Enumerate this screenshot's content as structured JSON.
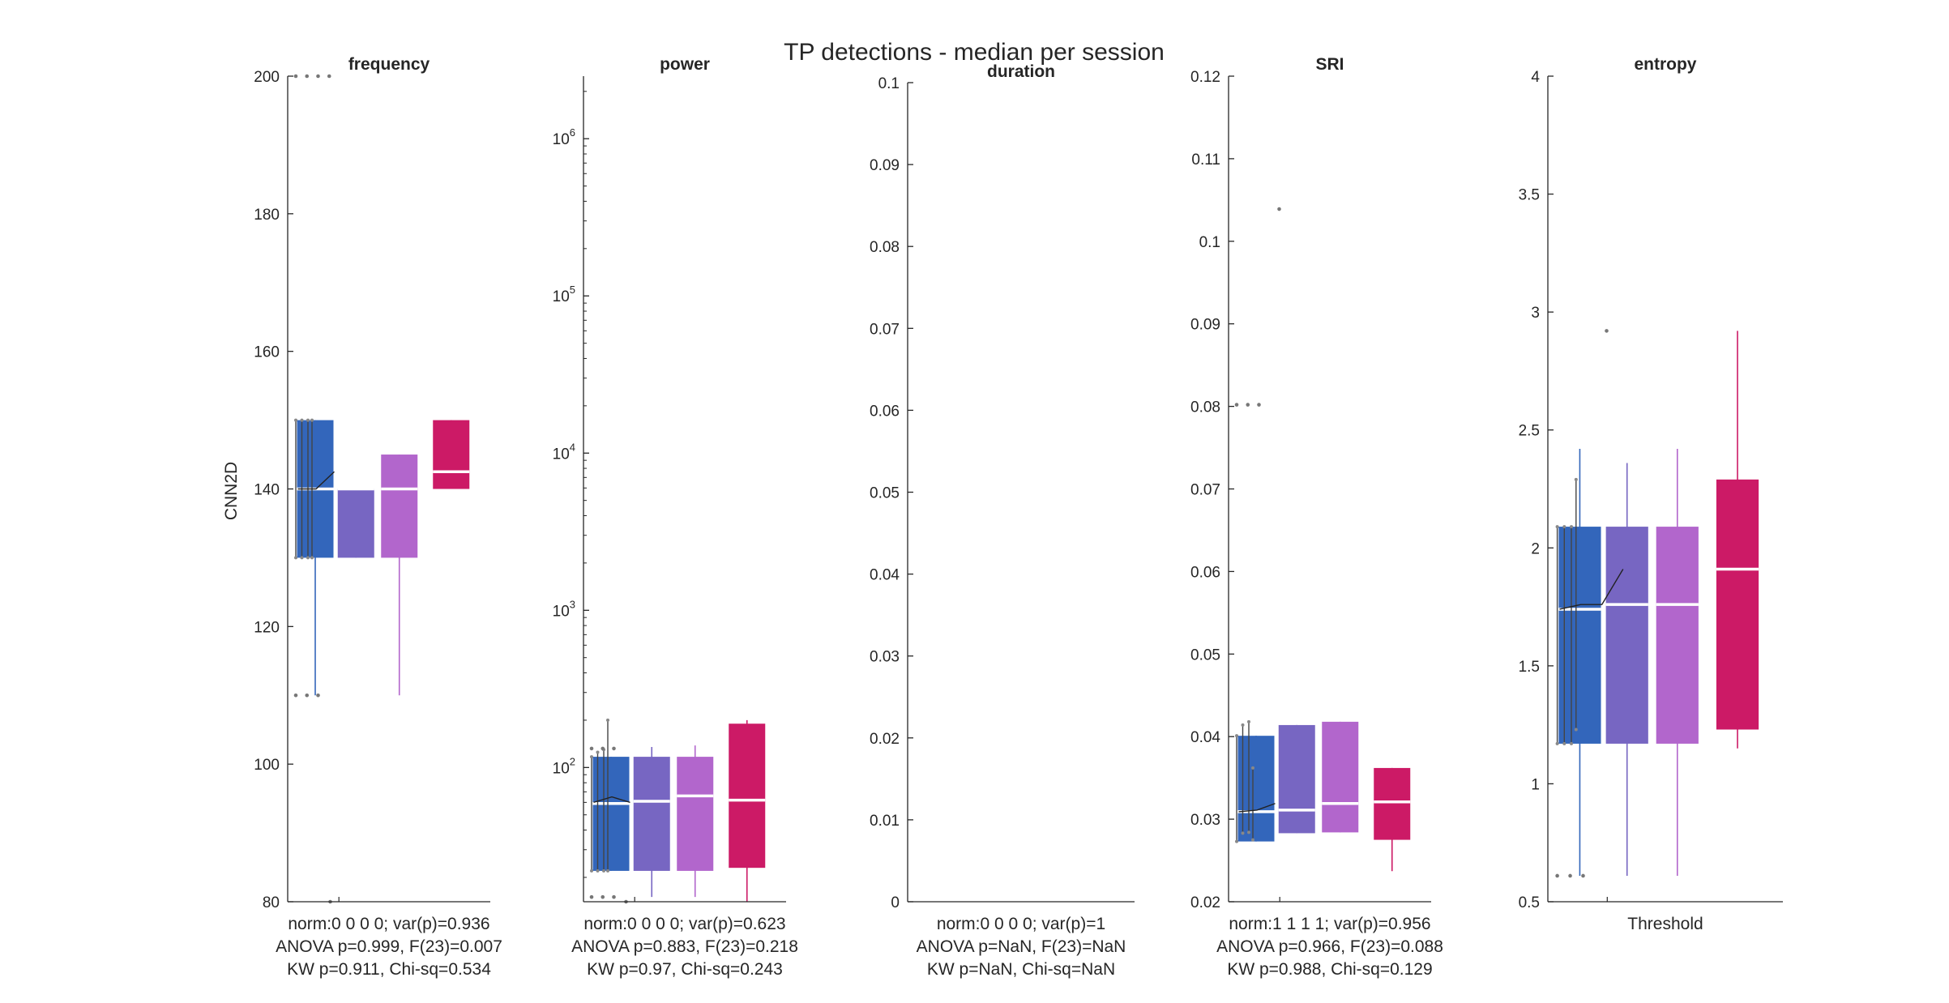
{
  "figure": {
    "title": "TP detections - median per session",
    "ylabel": "CNN2D",
    "xlabel": "Threshold"
  },
  "chart_data": [
    {
      "type": "box",
      "title": "frequency",
      "ylim": [
        80,
        200
      ],
      "yscale": "linear",
      "yticks": [
        80,
        100,
        120,
        140,
        160,
        180,
        200
      ],
      "ytick_labels": [
        "80",
        "100",
        "120",
        "140",
        "160",
        "180",
        "200"
      ],
      "groups": [
        {
          "color": "#3366bb",
          "median": 140,
          "q1": 130,
          "q3": 150,
          "whisker_low": 110,
          "whisker_high": 150
        },
        {
          "color": "#7766c2",
          "median": 140,
          "q1": 130,
          "q3": 140,
          "whisker_low": 130,
          "whisker_high": 140
        },
        {
          "color": "#b266cc",
          "median": 140,
          "q1": 130,
          "q3": 145,
          "whisker_low": 110,
          "whisker_high": 145
        },
        {
          "color": "#cc1a66",
          "median": 142.5,
          "q1": 140,
          "q3": 150,
          "whisker_low": 140,
          "whisker_high": 150
        }
      ],
      "outliers": [
        {
          "y": 200,
          "n": 4
        },
        {
          "y": 110,
          "n": 3
        }
      ],
      "low_marker": 80,
      "session_values": [
        140,
        140,
        142.5
      ],
      "session_spans": [
        [
          130,
          150
        ],
        [
          130,
          150
        ],
        [
          130,
          150
        ],
        [
          130,
          150
        ]
      ],
      "stats": [
        "norm:0  0  0  0; var(p)=0.936",
        "ANOVA p=0.999, F(23)=0.007",
        "KW p=0.911, Chi-sq=0.534"
      ]
    },
    {
      "type": "box",
      "title": "power",
      "ylim": [
        14,
        2500000
      ],
      "yscale": "log",
      "yticks": [
        100,
        1000,
        10000,
        100000,
        1000000
      ],
      "ytick_labels": [
        "10",
        "10",
        "10",
        "10",
        "10"
      ],
      "ytick_exponents": [
        "2",
        "3",
        "4",
        "5",
        "6"
      ],
      "groups": [
        {
          "color": "#3366bb",
          "median": 59,
          "q1": 22,
          "q3": 117,
          "whisker_low": 22,
          "whisker_high": 117
        },
        {
          "color": "#7766c2",
          "median": 61,
          "q1": 22,
          "q3": 117,
          "whisker_low": 15,
          "whisker_high": 135
        },
        {
          "color": "#b266cc",
          "median": 66,
          "q1": 22,
          "q3": 117,
          "whisker_low": 15,
          "whisker_high": 138
        },
        {
          "color": "#cc1a66",
          "median": 62,
          "q1": 23,
          "q3": 190,
          "whisker_low": 14,
          "whisker_high": 200
        }
      ],
      "outliers": [
        {
          "y": 15,
          "n": 3
        },
        {
          "y": 132,
          "n": 3
        }
      ],
      "low_marker": 14,
      "session_values": [
        60,
        65,
        60
      ],
      "session_spans": [
        [
          22,
          117
        ],
        [
          22,
          125
        ],
        [
          22,
          130
        ],
        [
          22,
          200
        ]
      ],
      "stats": [
        "norm:0  0  0  0; var(p)=0.623",
        "ANOVA p=0.883, F(23)=0.218",
        "KW p=0.97, Chi-sq=0.243"
      ]
    },
    {
      "type": "box",
      "title": "duration",
      "ylim": [
        0,
        0.1
      ],
      "yscale": "linear",
      "yticks": [
        0,
        0.01,
        0.02,
        0.03,
        0.04,
        0.05,
        0.06,
        0.07,
        0.08,
        0.09,
        0.1
      ],
      "ytick_labels": [
        "0",
        "0.01",
        "0.02",
        "0.03",
        "0.04",
        "0.05",
        "0.06",
        "0.07",
        "0.08",
        "0.09",
        "0.1"
      ],
      "groups": [],
      "outliers": [],
      "session_values": [],
      "session_spans": [],
      "stats": [
        "norm:0  0  0  0; var(p)=1",
        "ANOVA p=NaN, F(23)=NaN",
        "KW p=NaN, Chi-sq=NaN"
      ]
    },
    {
      "type": "box",
      "title": "SRI",
      "ylim": [
        0.02,
        0.12
      ],
      "yscale": "linear",
      "yticks": [
        0.02,
        0.03,
        0.04,
        0.05,
        0.06,
        0.07,
        0.08,
        0.09,
        0.1,
        0.11,
        0.12
      ],
      "ytick_labels": [
        "0.02",
        "0.03",
        "0.04",
        "0.05",
        "0.06",
        "0.07",
        "0.08",
        "0.09",
        "0.1",
        "0.11",
        "0.12"
      ],
      "groups": [
        {
          "color": "#3366bb",
          "median": 0.0309,
          "q1": 0.0273,
          "q3": 0.0401,
          "whisker_low": 0.0273,
          "whisker_high": 0.0401
        },
        {
          "color": "#7766c2",
          "median": 0.0311,
          "q1": 0.0283,
          "q3": 0.0414,
          "whisker_low": 0.0283,
          "whisker_high": 0.0414
        },
        {
          "color": "#b266cc",
          "median": 0.0319,
          "q1": 0.0284,
          "q3": 0.0418,
          "whisker_low": 0.0284,
          "whisker_high": 0.0418
        },
        {
          "color": "#cc1a66",
          "median": 0.0321,
          "q1": 0.0275,
          "q3": 0.0362,
          "whisker_low": 0.0237,
          "whisker_high": 0.0362
        }
      ],
      "outliers": [
        {
          "y": 0.0802,
          "n": 3
        },
        {
          "y": 0.1039,
          "n": 1
        }
      ],
      "session_values": [
        0.0309,
        0.0311,
        0.0319
      ],
      "session_spans": [
        [
          0.0273,
          0.0401
        ],
        [
          0.0283,
          0.0414
        ],
        [
          0.0284,
          0.0418
        ],
        [
          0.0275,
          0.0362
        ]
      ],
      "stats": [
        "norm:1  1  1  1; var(p)=0.956",
        "ANOVA p=0.966, F(23)=0.088",
        "KW p=0.988, Chi-sq=0.129"
      ]
    },
    {
      "type": "box",
      "title": "entropy",
      "ylim": [
        0.5,
        4
      ],
      "yscale": "linear",
      "yticks": [
        0.5,
        1,
        1.5,
        2,
        2.5,
        3,
        3.5,
        4
      ],
      "ytick_labels": [
        "0.5",
        "1",
        "1.5",
        "2",
        "2.5",
        "3",
        "3.5",
        "4"
      ],
      "groups": [
        {
          "color": "#3366bb",
          "median": 1.74,
          "q1": 1.17,
          "q3": 2.09,
          "whisker_low": 0.61,
          "whisker_high": 2.42
        },
        {
          "color": "#7766c2",
          "median": 1.76,
          "q1": 1.17,
          "q3": 2.09,
          "whisker_low": 0.61,
          "whisker_high": 2.36
        },
        {
          "color": "#b266cc",
          "median": 1.76,
          "q1": 1.17,
          "q3": 2.09,
          "whisker_low": 0.61,
          "whisker_high": 2.42
        },
        {
          "color": "#cc1a66",
          "median": 1.91,
          "q1": 1.23,
          "q3": 2.29,
          "whisker_low": 1.15,
          "whisker_high": 2.92
        }
      ],
      "outliers": [
        {
          "y": 0.61,
          "n": 3
        },
        {
          "y": 2.92,
          "n": 1
        }
      ],
      "session_values": [
        1.74,
        1.76,
        1.76,
        1.91
      ],
      "session_spans": [
        [
          1.17,
          2.09
        ],
        [
          1.17,
          2.09
        ],
        [
          1.17,
          2.09
        ],
        [
          1.23,
          2.29
        ]
      ],
      "stats": [
        "",
        "",
        ""
      ],
      "xlabel_shown": true
    }
  ]
}
